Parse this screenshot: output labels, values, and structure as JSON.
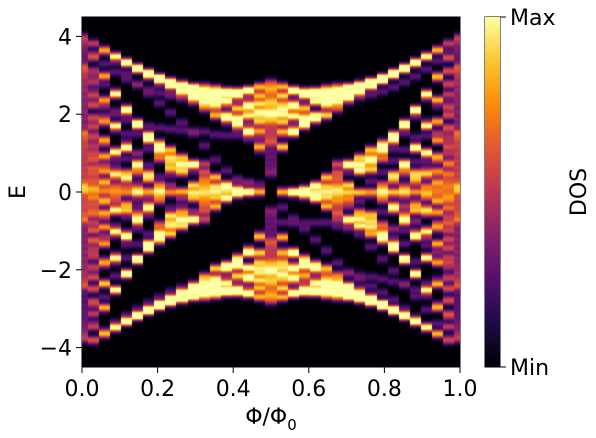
{
  "chart_data": {
    "type": "heatmap",
    "title": "",
    "xlabel": "Φ/Φ",
    "xlabel_subscript": "0",
    "ylabel": "E",
    "xlim": [
      0.0,
      1.0
    ],
    "ylim": [
      -4.5,
      4.5
    ],
    "x_ticks": [
      0.0,
      0.2,
      0.4,
      0.6,
      0.8,
      1.0
    ],
    "x_tick_labels": [
      "0.0",
      "0.2",
      "0.4",
      "0.6",
      "0.8",
      "1.0"
    ],
    "y_ticks": [
      -4,
      -2,
      0,
      2,
      4
    ],
    "y_tick_labels": [
      "−4",
      "−2",
      "0",
      "2",
      "4"
    ],
    "grid": false,
    "colormap": "inferno",
    "colorbar": {
      "label": "DOS",
      "max_label": "Max",
      "min_label": "Min"
    },
    "bright_features": [
      {
        "x": 0.0,
        "y": 4.0
      },
      {
        "x": 0.0,
        "y": -4.0
      },
      {
        "x": 1.0,
        "y": 4.0
      },
      {
        "x": 1.0,
        "y": -4.0
      },
      {
        "x": 0.5,
        "y": 2.8
      },
      {
        "x": 0.5,
        "y": -2.8
      },
      {
        "x": 0.5,
        "y": 2.0
      },
      {
        "x": 0.5,
        "y": -2.0
      },
      {
        "x": 0.333,
        "y": 0.0
      },
      {
        "x": 0.667,
        "y": 0.0
      },
      {
        "x": 0.25,
        "y": 0.0
      },
      {
        "x": 0.75,
        "y": 0.0
      }
    ]
  }
}
